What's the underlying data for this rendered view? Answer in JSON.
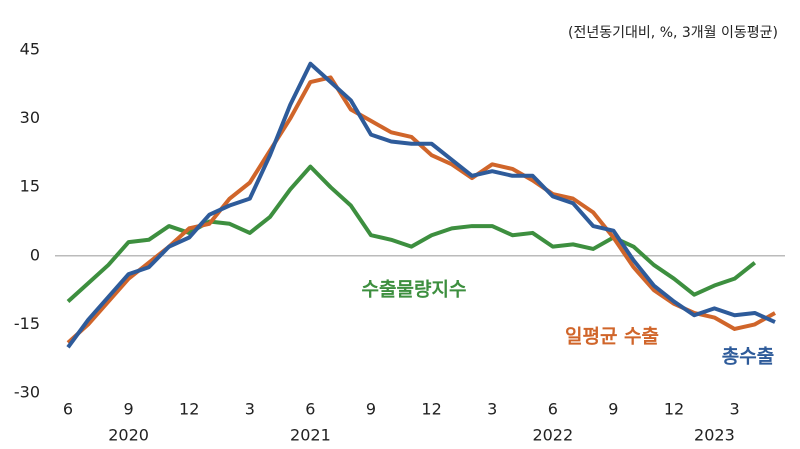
{
  "chart_data": {
    "type": "line",
    "note": "(전년동기대비, %, 3개월 이동평균)",
    "categories": [
      "6",
      null,
      null,
      "9",
      null,
      null,
      "12",
      null,
      null,
      "3",
      null,
      null,
      "6",
      null,
      null,
      "9",
      null,
      null,
      "12",
      null,
      null,
      "3",
      null,
      null,
      "6",
      null,
      null,
      "9",
      null,
      null,
      "12",
      null,
      null,
      "3",
      null,
      null
    ],
    "year_labels": [
      null,
      null,
      null,
      "2020",
      null,
      null,
      null,
      null,
      null,
      null,
      null,
      null,
      "2021",
      null,
      null,
      null,
      null,
      null,
      null,
      null,
      null,
      null,
      null,
      null,
      "2022",
      null,
      null,
      null,
      null,
      null,
      null,
      null,
      "2023",
      null,
      null,
      null
    ],
    "series": [
      {
        "name": "총수출",
        "color": "#2e5b9a",
        "values": [
          -20,
          -14,
          -9,
          -4,
          -2.5,
          2,
          4,
          9,
          11,
          12.5,
          22,
          33,
          42,
          38,
          34,
          26.5,
          25,
          24.5,
          24.5,
          21,
          17.5,
          18.5,
          17.5,
          17.5,
          13,
          11.5,
          6.5,
          5.5,
          -1,
          -6.5,
          -10,
          -13,
          -11.5,
          -13,
          -12.5,
          -14.5
        ]
      },
      {
        "name": "일평균 수출",
        "color": "#d0652a",
        "values": [
          -19,
          -15,
          -10,
          -5,
          -1.5,
          2,
          6,
          7,
          12.5,
          16,
          23,
          30,
          38,
          39,
          32,
          29.5,
          27,
          26,
          22,
          20,
          17,
          20,
          19,
          16.5,
          13.5,
          12.5,
          9.5,
          4,
          -2.5,
          -7.5,
          -10.5,
          -12.5,
          -13.5,
          -16,
          -15,
          -12.5
        ]
      },
      {
        "name": "수출물량지수",
        "color": "#3d8f3f",
        "values": [
          -10,
          -6,
          -2,
          3,
          3.5,
          6.5,
          5,
          7.5,
          7,
          5,
          8.5,
          14.5,
          19.5,
          15,
          11,
          4.5,
          3.5,
          2,
          4.5,
          6,
          6.5,
          6.5,
          4.5,
          5,
          2,
          2.5,
          1.5,
          4,
          2,
          -2,
          -5,
          -8.5,
          -6.5,
          -5,
          -1.5,
          null
        ]
      }
    ],
    "ylim": [
      -30,
      45
    ],
    "yticks": [
      -30,
      -15,
      0,
      15,
      30,
      45
    ],
    "zero_line": true
  }
}
